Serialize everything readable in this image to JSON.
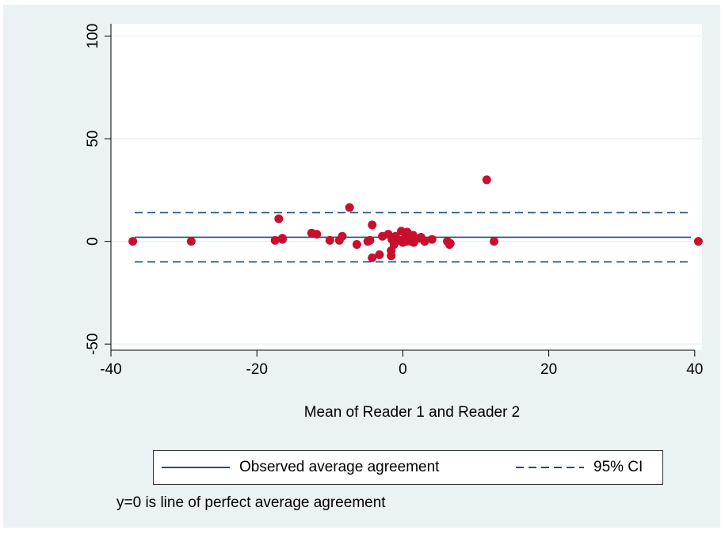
{
  "chart_data": {
    "type": "scatter",
    "xlabel": "Mean of Reader 1 and Reader 2",
    "ylabel": "",
    "xlim": [
      -40,
      41
    ],
    "ylim": [
      -53,
      106
    ],
    "x_ticks": [
      -40,
      -20,
      0,
      20,
      40
    ],
    "y_ticks": [
      -50,
      0,
      50,
      100
    ],
    "grid": false,
    "legend_position": "bottom",
    "colors": {
      "points": "#c8102e",
      "lines": "#1f4e79",
      "background": "#eaf2f3",
      "gridline": "#ffffff"
    },
    "reference_lines": {
      "mean": 2,
      "upper_ci": 14,
      "lower_ci": -10
    },
    "legend": [
      {
        "label": "Observed average agreement",
        "style": "solid"
      },
      {
        "label": "95% CI",
        "style": "dashed"
      }
    ],
    "note": "y=0 is line of perfect average agreement",
    "points": [
      {
        "x": -37,
        "y": 0
      },
      {
        "x": -29,
        "y": 0
      },
      {
        "x": -17.5,
        "y": 0.5
      },
      {
        "x": -17,
        "y": 11
      },
      {
        "x": -16.5,
        "y": 1
      },
      {
        "x": -16.5,
        "y": 1.5
      },
      {
        "x": -12.5,
        "y": 4
      },
      {
        "x": -11.8,
        "y": 3.5
      },
      {
        "x": -10,
        "y": 0.5
      },
      {
        "x": -8.7,
        "y": 0.5
      },
      {
        "x": -8.3,
        "y": 2.5
      },
      {
        "x": -7.3,
        "y": 16.5
      },
      {
        "x": -6.3,
        "y": -1.5
      },
      {
        "x": -4.8,
        "y": 0
      },
      {
        "x": -4.5,
        "y": 0.5
      },
      {
        "x": -4.2,
        "y": 8
      },
      {
        "x": -4.2,
        "y": -8
      },
      {
        "x": -3.2,
        "y": -6.5
      },
      {
        "x": -2.8,
        "y": 2.5
      },
      {
        "x": -2.0,
        "y": 3.5
      },
      {
        "x": -1.6,
        "y": -4.5
      },
      {
        "x": -1.6,
        "y": -7
      },
      {
        "x": -1.5,
        "y": 1
      },
      {
        "x": -1.2,
        "y": -1.5
      },
      {
        "x": -1.0,
        "y": 2.5
      },
      {
        "x": -0.5,
        "y": 0.5
      },
      {
        "x": -0.2,
        "y": 5
      },
      {
        "x": 0,
        "y": -0.5
      },
      {
        "x": 0.3,
        "y": 1.5
      },
      {
        "x": 0.5,
        "y": 0
      },
      {
        "x": 0.6,
        "y": 4.5
      },
      {
        "x": 1.1,
        "y": 0
      },
      {
        "x": 1.4,
        "y": 3
      },
      {
        "x": 1.5,
        "y": -0.5
      },
      {
        "x": 2.3,
        "y": 1.5
      },
      {
        "x": 2.5,
        "y": 2
      },
      {
        "x": 3.0,
        "y": 0
      },
      {
        "x": 4.0,
        "y": 1
      },
      {
        "x": 6.1,
        "y": 0
      },
      {
        "x": 6.4,
        "y": -1.5
      },
      {
        "x": 6.5,
        "y": -1
      },
      {
        "x": 11.5,
        "y": 30
      },
      {
        "x": 12.5,
        "y": 0
      },
      {
        "x": 40.5,
        "y": 0
      }
    ]
  }
}
